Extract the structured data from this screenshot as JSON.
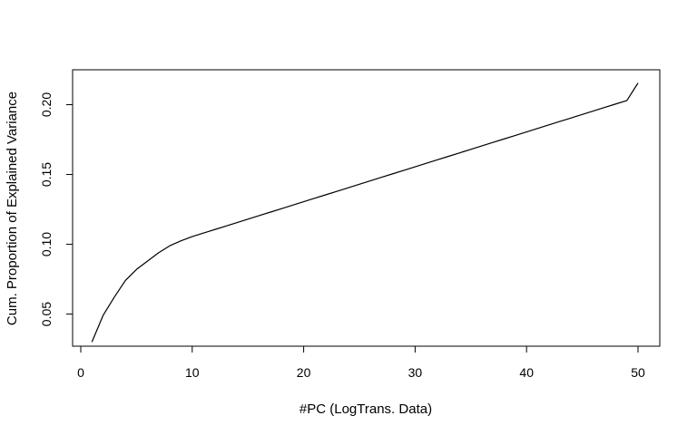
{
  "chart_data": {
    "type": "line",
    "title": "",
    "xlabel": "#PC (LogTrans. Data)",
    "ylabel": "Cum. Proportion of Explained Variance",
    "xlim": [
      0,
      51
    ],
    "ylim": [
      0.027,
      0.225
    ],
    "x_ticks": [
      0,
      10,
      20,
      30,
      40,
      50
    ],
    "y_ticks": [
      0.05,
      0.1,
      0.15,
      0.2
    ],
    "x_tick_labels": [
      "0",
      "10",
      "20",
      "30",
      "40",
      "50"
    ],
    "y_tick_labels": [
      "0.05",
      "0.10",
      "0.15",
      "0.20"
    ],
    "grid": false,
    "legend": "none",
    "line_color": "#000000",
    "series": [
      {
        "x": [
          1,
          2,
          3,
          4,
          5,
          6,
          7,
          8,
          9,
          10,
          11,
          12,
          13,
          14,
          15,
          16,
          17,
          18,
          19,
          20,
          21,
          22,
          23,
          24,
          25,
          26,
          27,
          28,
          29,
          30,
          31,
          32,
          33,
          34,
          35,
          36,
          37,
          38,
          39,
          40,
          41,
          42,
          43,
          44,
          45,
          46,
          47,
          48,
          49,
          50
        ],
        "values": [
          0.03,
          0.049,
          0.062,
          0.074,
          0.082,
          0.088,
          0.094,
          0.099,
          0.1025,
          0.1055,
          0.108,
          0.1105,
          0.113,
          0.1155,
          0.118,
          0.1205,
          0.123,
          0.1255,
          0.128,
          0.1305,
          0.133,
          0.1355,
          0.138,
          0.1405,
          0.143,
          0.1455,
          0.148,
          0.1505,
          0.153,
          0.1555,
          0.158,
          0.1605,
          0.163,
          0.1655,
          0.168,
          0.1705,
          0.173,
          0.1755,
          0.178,
          0.1805,
          0.183,
          0.1855,
          0.188,
          0.1905,
          0.193,
          0.1955,
          0.198,
          0.2005,
          0.203,
          0.2155
        ]
      }
    ]
  }
}
